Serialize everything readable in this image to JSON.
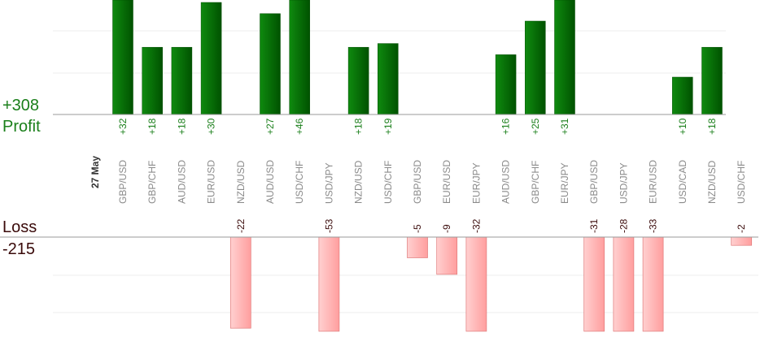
{
  "summary": {
    "profit_total": "+308",
    "profit_label": "Profit",
    "loss_label": "Loss",
    "loss_total": "-215"
  },
  "chart_data": {
    "type": "bar",
    "date_label": "27 May",
    "categories": [
      "GBP/USD",
      "GBP/CHF",
      "AUD/USD",
      "EUR/USD",
      "NZD/USD",
      "AUD/USD",
      "USD/CHF",
      "USD/JPY",
      "NZD/USD",
      "USD/CHF",
      "GBP/USD",
      "EUR/USD",
      "EUR/JPY",
      "AUD/USD",
      "GBP/CHF",
      "EUR/JPY",
      "GBP/USD",
      "USD/JPY",
      "EUR/USD",
      "USD/CAD",
      "NZD/USD",
      "USD/CHF"
    ],
    "values": [
      32,
      18,
      18,
      30,
      -22,
      27,
      46,
      -53,
      18,
      19,
      -5,
      -9,
      -32,
      16,
      25,
      31,
      -31,
      -28,
      -33,
      10,
      18,
      -2
    ],
    "value_labels": [
      "+32",
      "+18",
      "+18",
      "+30",
      "-22",
      "+27",
      "+46",
      "-53",
      "+18",
      "+19",
      "-5",
      "-9",
      "-32",
      "+16",
      "+25",
      "+31",
      "-31",
      "-28",
      "-33",
      "+10",
      "+18",
      "-2"
    ],
    "colors": {
      "profit": "#006400",
      "profit_light": "#0f8a0f",
      "loss": "#ffaaaa",
      "loss_edge": "#e07a7a",
      "profit_text": "#1a7f1a",
      "loss_text": "#3a0a0a"
    }
  }
}
